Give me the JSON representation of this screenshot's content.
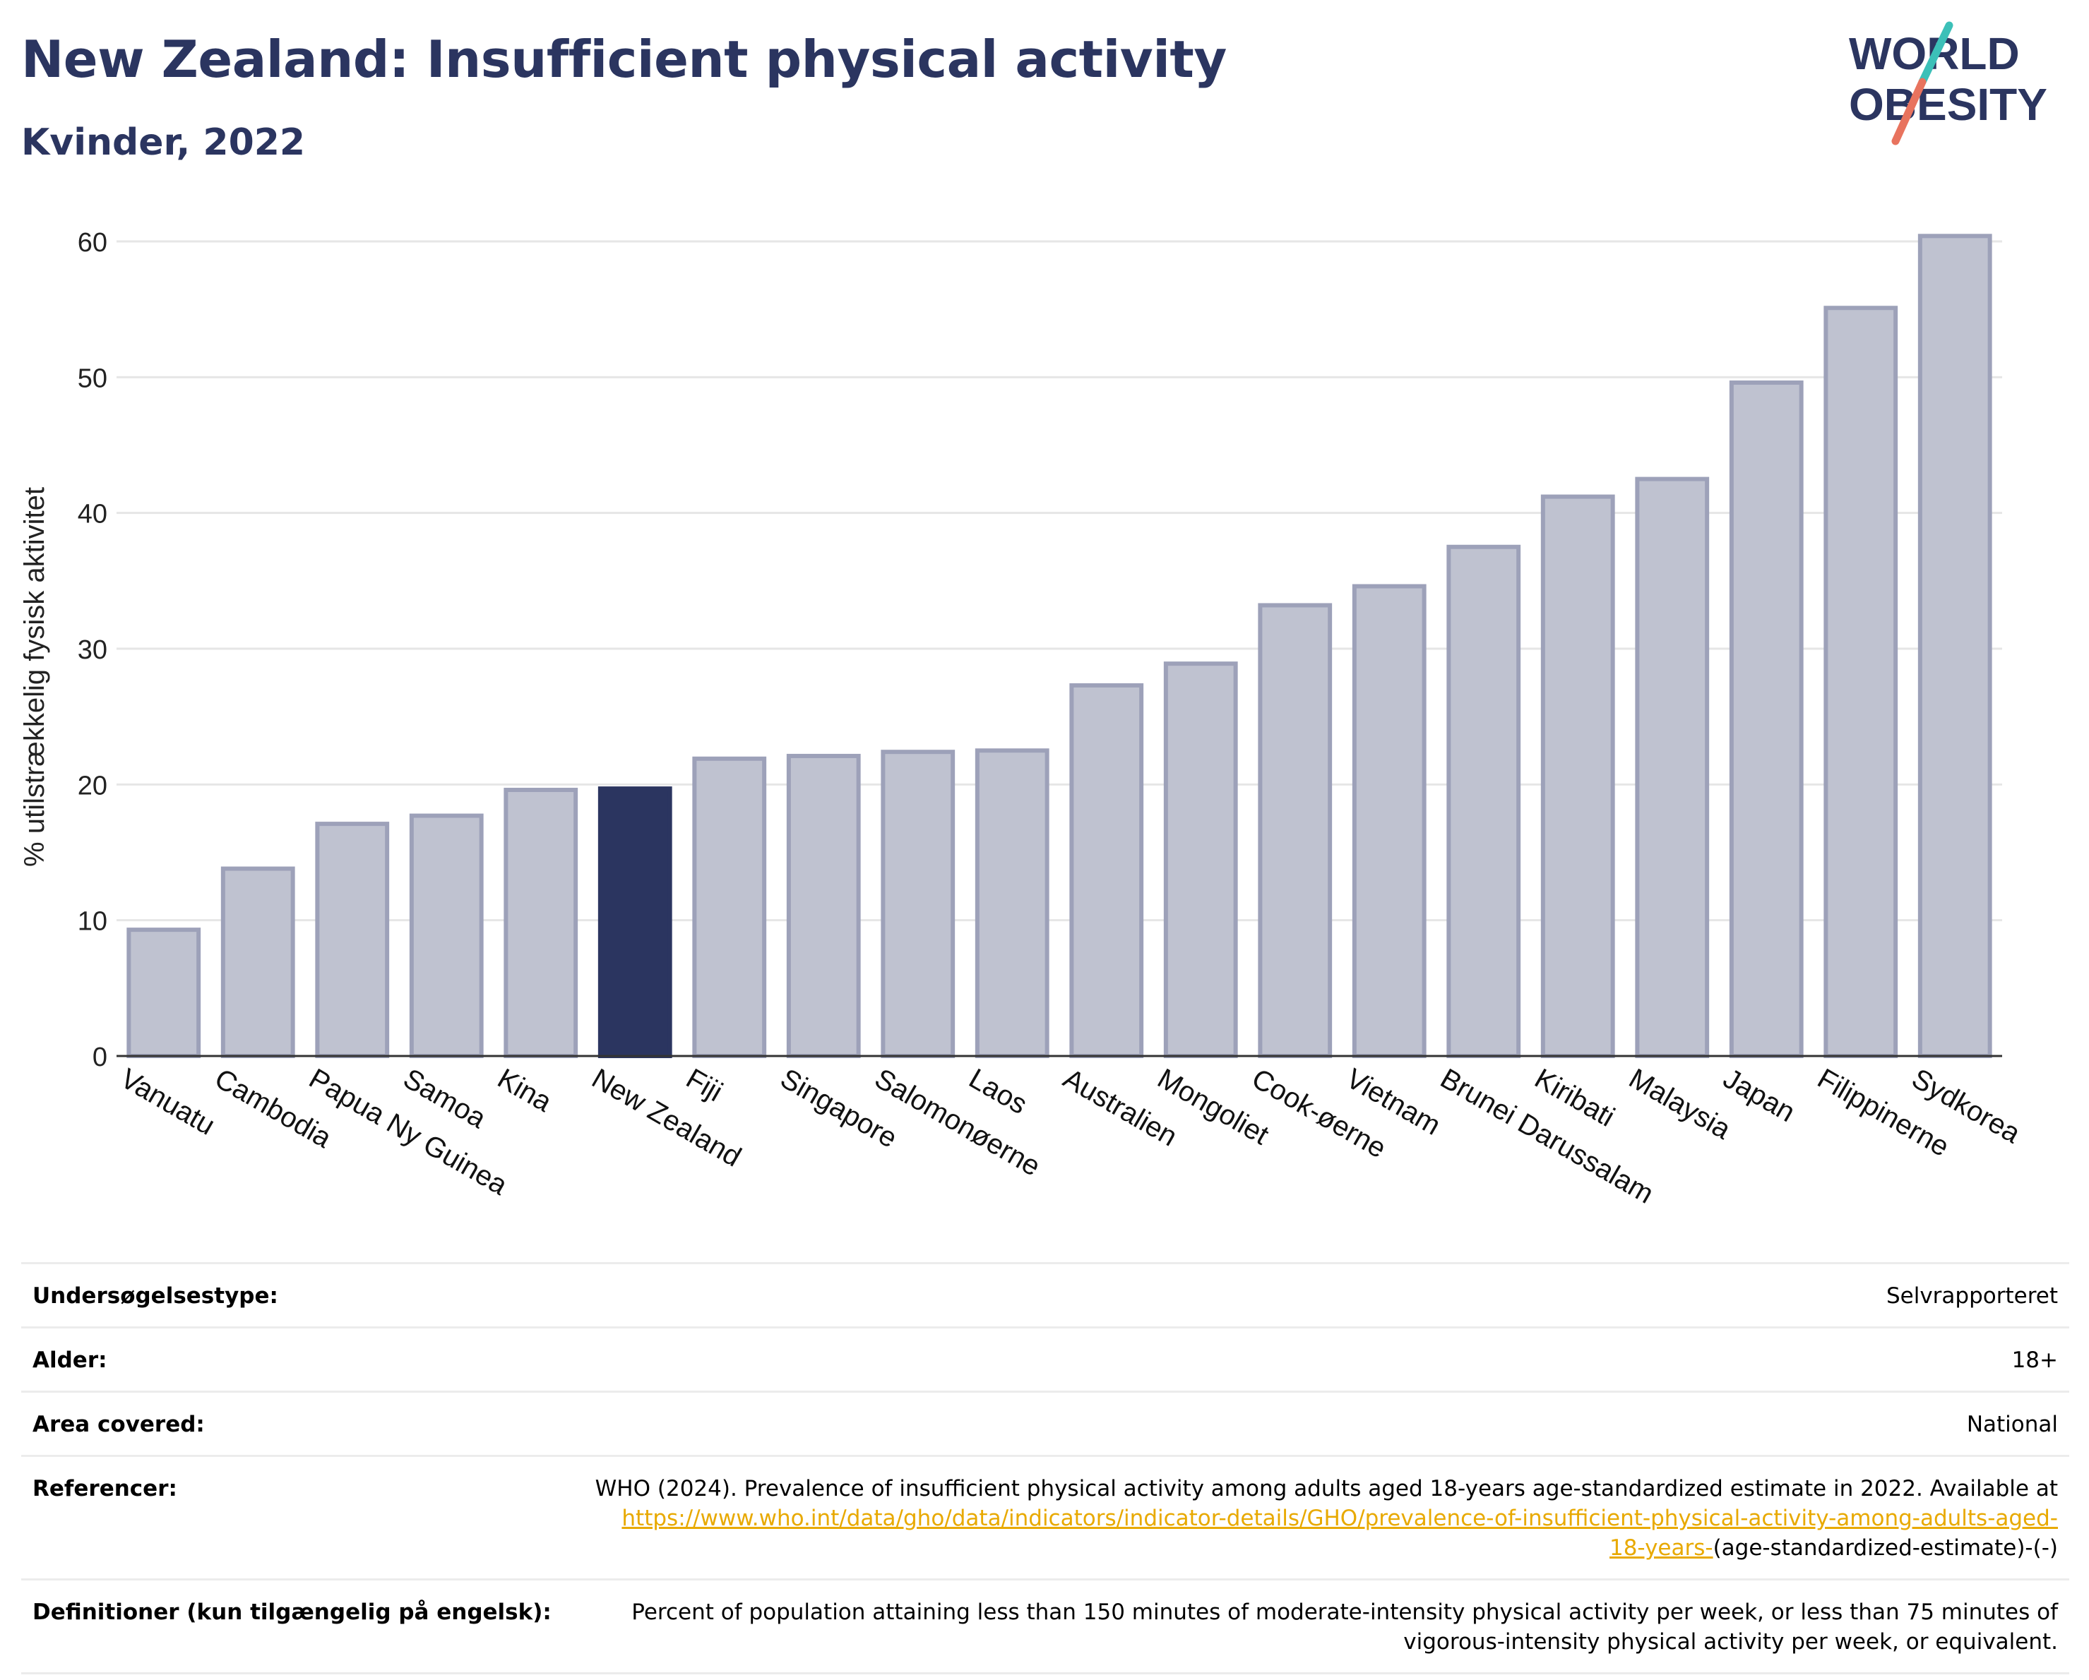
{
  "header": {
    "title": "New Zealand: Insufficient physical activity",
    "subtitle": "Kvinder, 2022"
  },
  "logo": {
    "line1": "WORLD",
    "line2": "OBESITY",
    "colors": {
      "text": "#2b3560",
      "slash_teal": "#3cc0b8",
      "slash_coral": "#e8735e"
    }
  },
  "chart_data": {
    "type": "bar",
    "title": "New Zealand: Insufficient physical activity",
    "subtitle": "Kvinder, 2022",
    "xlabel": "",
    "ylabel": "% utilstrækkelig fysisk aktivitet",
    "ylim": [
      0,
      62
    ],
    "yticks": [
      0,
      10,
      20,
      30,
      40,
      50,
      60
    ],
    "grid": true,
    "legend": "none",
    "highlight": "New Zealand",
    "colors": {
      "bar": "#bfc2d0",
      "bar_edge": "#9da1b9",
      "highlight": "#2b3560"
    },
    "categories": [
      "Vanuatu",
      "Cambodia",
      "Papua Ny Guinea",
      "Samoa",
      "Kina",
      "New Zealand",
      "Fiji",
      "Singapore",
      "Salomonøerne",
      "Laos",
      "Australien",
      "Mongoliet",
      "Cook-øerne",
      "Vietnam",
      "Brunei Darussalam",
      "Kiribati",
      "Malaysia",
      "Japan",
      "Filippinerne",
      "Sydkorea"
    ],
    "values": [
      9.3,
      13.8,
      17.1,
      17.7,
      19.6,
      19.7,
      21.9,
      22.1,
      22.4,
      22.5,
      27.3,
      28.9,
      33.2,
      34.6,
      37.5,
      41.2,
      42.5,
      49.6,
      55.1,
      60.4
    ]
  },
  "info": {
    "rows": [
      {
        "label": "Undersøgelsestype:",
        "value": "Selvrapporteret"
      },
      {
        "label": "Alder:",
        "value": "18+"
      },
      {
        "label": "Area covered:",
        "value": "National"
      }
    ],
    "references": {
      "label": "Referencer:",
      "text": "WHO (2024). Prevalence of insufficient physical activity among adults aged 18-years age-standardized estimate in 2022. Available at",
      "link_part1": "https://www.who.int/data/gho/data/indicators/indicator-details/GHO/prevalence-of-insufficient-physical-activity-among-adults-aged-",
      "link_part2": "18-years-",
      "suffix": "(age-standardized-estimate)-(-)"
    },
    "definition": {
      "label": "Definitioner (kun tilgængelig på engelsk):",
      "line1": "Percent of population attaining less than 150 minutes of moderate-intensity physical activity per week, or less than 75 minutes of",
      "line2": "vigorous-intensity physical activity per week, or equivalent."
    }
  }
}
